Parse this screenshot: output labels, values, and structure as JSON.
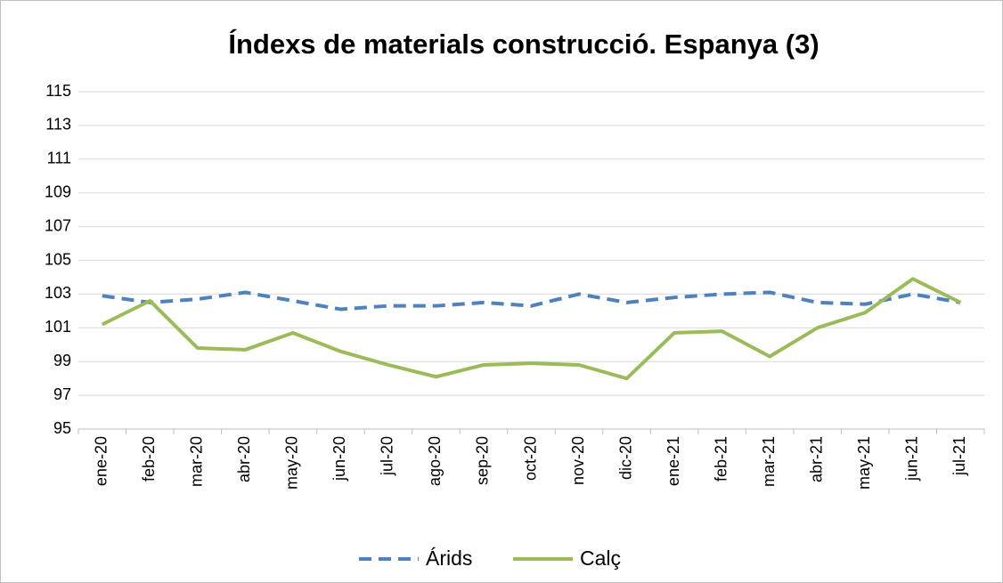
{
  "chart_data": {
    "type": "line",
    "title": "Índexs de materials construcció. Espanya (3)",
    "categories": [
      "ene-20",
      "feb-20",
      "mar-20",
      "abr-20",
      "may-20",
      "jun-20",
      "jul-20",
      "ago-20",
      "sep-20",
      "oct-20",
      "nov-20",
      "dic-20",
      "ene-21",
      "feb-21",
      "mar-21",
      "abr-21",
      "may-21",
      "jun-21",
      "jul-21"
    ],
    "series": [
      {
        "name": "Árids",
        "color": "#4f81bd",
        "dashed": true,
        "values": [
          102.9,
          102.5,
          102.7,
          103.1,
          102.6,
          102.1,
          102.3,
          102.3,
          102.5,
          102.3,
          103.0,
          102.5,
          102.8,
          103.0,
          103.1,
          102.5,
          102.4,
          103.0,
          102.5
        ]
      },
      {
        "name": "Calç",
        "color": "#9bbb59",
        "dashed": false,
        "values": [
          101.2,
          102.6,
          99.8,
          99.7,
          100.7,
          99.6,
          98.8,
          98.1,
          98.8,
          98.9,
          98.8,
          98.0,
          100.7,
          100.8,
          99.3,
          101.0,
          101.9,
          103.9,
          102.5
        ]
      }
    ],
    "ylim": [
      95,
      115
    ],
    "yticks": [
      95,
      97,
      99,
      101,
      103,
      105,
      107,
      109,
      111,
      113,
      115
    ],
    "grid": true,
    "legend": "bottom"
  }
}
